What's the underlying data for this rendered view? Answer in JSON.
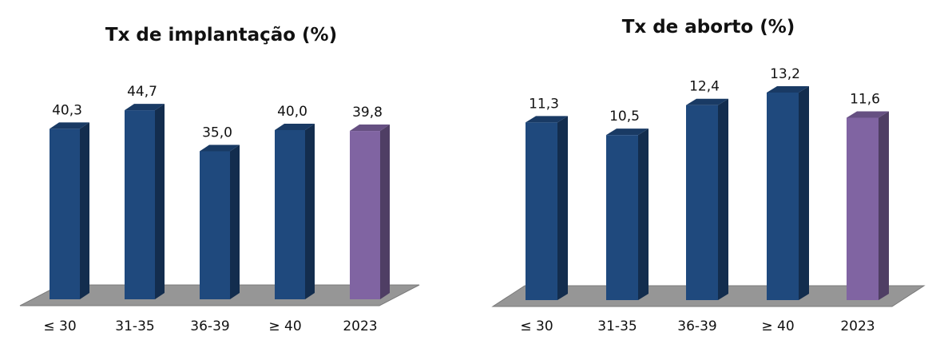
{
  "chart_data": [
    {
      "type": "bar",
      "title": "Tx de implantação (%)",
      "categories": [
        "≤ 30",
        "31-35",
        "36-39",
        "≥ 40",
        "2023"
      ],
      "values": [
        40.3,
        44.7,
        35.0,
        40.0,
        39.8
      ],
      "data_labels": [
        "40,3",
        "44,7",
        "35,0",
        "40,0",
        "39,8"
      ],
      "ylim": [
        0,
        50
      ],
      "grid": false,
      "legend": "none",
      "colors": {
        "bar": "#1f497d",
        "bar_highlight": "#8064a2",
        "floor": "#969696"
      },
      "highlight_index": 4
    },
    {
      "type": "bar",
      "title": "Tx de aborto (%)",
      "categories": [
        "≤ 30",
        "31-35",
        "36-39",
        "≥ 40",
        "2023"
      ],
      "values": [
        11.3,
        10.5,
        12.4,
        13.2,
        11.6
      ],
      "data_labels": [
        "11,3",
        "10,5",
        "12,4",
        "13,2",
        "11,6"
      ],
      "ylim": [
        0,
        15
      ],
      "grid": false,
      "legend": "none",
      "colors": {
        "bar": "#1f497d",
        "bar_highlight": "#8064a2",
        "floor": "#969696"
      },
      "highlight_index": 4
    }
  ]
}
